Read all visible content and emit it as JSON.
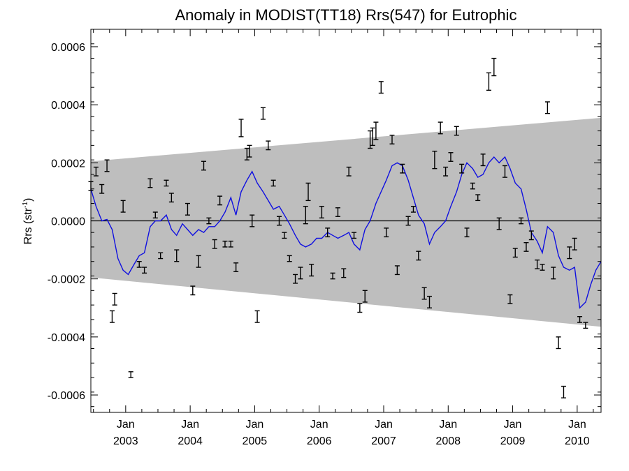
{
  "chart_data": {
    "type": "line",
    "title": "Anomaly in MODIST(TT18) Rrs(547) for Eutrophic",
    "ylabel": "Rrs (str",
    "ylabel_sup": "-1",
    "ylabel_close": ")",
    "xlim": [
      2002.46,
      2010.37
    ],
    "ylim": [
      -0.00066,
      0.00066
    ],
    "y_ticks": [
      -0.0006,
      -0.0004,
      -0.0002,
      0.0,
      0.0002,
      0.0004,
      0.0006
    ],
    "y_tick_labels": [
      "-0.0006",
      "-0.0004",
      "-0.0002",
      "0.0000",
      "0.0002",
      "0.0004",
      "0.0006"
    ],
    "x_ticks": [
      {
        "x": 2003.0,
        "month": "Jan",
        "year": "2003"
      },
      {
        "x": 2004.0,
        "month": "Jan",
        "year": "2004"
      },
      {
        "x": 2005.0,
        "month": "Jan",
        "year": "2005"
      },
      {
        "x": 2006.0,
        "month": "Jan",
        "year": "2006"
      },
      {
        "x": 2007.0,
        "month": "Jan",
        "year": "2007"
      },
      {
        "x": 2008.0,
        "month": "Jan",
        "year": "2008"
      },
      {
        "x": 2009.0,
        "month": "Jan",
        "year": "2009"
      },
      {
        "x": 2010.0,
        "month": "Jan",
        "year": "2010"
      }
    ],
    "grid": false,
    "zero_line": 0.0,
    "band": {
      "x": [
        2002.46,
        2010.37
      ],
      "upper": [
        0.000205,
        0.000355
      ],
      "lower": [
        -0.000195,
        -0.000365
      ],
      "color": "#bebebe"
    },
    "series": [
      {
        "style": "line",
        "color": "#1010e0",
        "points": [
          [
            2002.46,
            0.00011
          ],
          [
            2002.54,
            5e-05
          ],
          [
            2002.63,
            0.0
          ],
          [
            2002.71,
            5e-06
          ],
          [
            2002.79,
            -3e-05
          ],
          [
            2002.88,
            -0.00013
          ],
          [
            2002.96,
            -0.00017
          ],
          [
            2003.04,
            -0.000185
          ],
          [
            2003.13,
            -0.00015
          ],
          [
            2003.21,
            -0.00012
          ],
          [
            2003.29,
            -0.00011
          ],
          [
            2003.38,
            -2e-05
          ],
          [
            2003.46,
            0.0
          ],
          [
            2003.54,
            0.0
          ],
          [
            2003.63,
            2e-05
          ],
          [
            2003.71,
            -3e-05
          ],
          [
            2003.79,
            -5e-05
          ],
          [
            2003.88,
            -1e-05
          ],
          [
            2003.96,
            -3e-05
          ],
          [
            2004.04,
            -5e-05
          ],
          [
            2004.13,
            -3e-05
          ],
          [
            2004.21,
            -4e-05
          ],
          [
            2004.29,
            -2e-05
          ],
          [
            2004.38,
            -2e-05
          ],
          [
            2004.46,
            0.0
          ],
          [
            2004.54,
            3e-05
          ],
          [
            2004.63,
            8e-05
          ],
          [
            2004.71,
            2e-05
          ],
          [
            2004.79,
            0.0001
          ],
          [
            2004.88,
            0.00014
          ],
          [
            2004.96,
            0.00017
          ],
          [
            2005.04,
            0.00013
          ],
          [
            2005.13,
            0.0001
          ],
          [
            2005.21,
            7e-05
          ],
          [
            2005.29,
            4e-05
          ],
          [
            2005.38,
            5e-05
          ],
          [
            2005.46,
            2e-05
          ],
          [
            2005.54,
            -1e-05
          ],
          [
            2005.63,
            -5e-05
          ],
          [
            2005.71,
            -8e-05
          ],
          [
            2005.79,
            -9e-05
          ],
          [
            2005.88,
            -8e-05
          ],
          [
            2005.96,
            -6e-05
          ],
          [
            2006.04,
            -6e-05
          ],
          [
            2006.13,
            -4e-05
          ],
          [
            2006.21,
            -5e-05
          ],
          [
            2006.29,
            -6e-05
          ],
          [
            2006.38,
            -5e-05
          ],
          [
            2006.46,
            -4e-05
          ],
          [
            2006.54,
            -8e-05
          ],
          [
            2006.63,
            -0.0001
          ],
          [
            2006.71,
            -3e-05
          ],
          [
            2006.79,
            0.0
          ],
          [
            2006.88,
            6e-05
          ],
          [
            2006.96,
            0.0001
          ],
          [
            2007.04,
            0.00014
          ],
          [
            2007.13,
            0.00019
          ],
          [
            2007.21,
            0.0002
          ],
          [
            2007.29,
            0.00019
          ],
          [
            2007.38,
            0.00014
          ],
          [
            2007.46,
            8e-05
          ],
          [
            2007.54,
            2e-05
          ],
          [
            2007.63,
            -1e-05
          ],
          [
            2007.71,
            -8e-05
          ],
          [
            2007.79,
            -4e-05
          ],
          [
            2007.88,
            -2e-05
          ],
          [
            2007.96,
            0.0
          ],
          [
            2008.04,
            5e-05
          ],
          [
            2008.13,
            0.0001
          ],
          [
            2008.21,
            0.00016
          ],
          [
            2008.29,
            0.0002
          ],
          [
            2008.38,
            0.00018
          ],
          [
            2008.46,
            0.00015
          ],
          [
            2008.54,
            0.00016
          ],
          [
            2008.63,
            0.0002
          ],
          [
            2008.71,
            0.00022
          ],
          [
            2008.79,
            0.0002
          ],
          [
            2008.88,
            0.00022
          ],
          [
            2008.96,
            0.00018
          ],
          [
            2009.04,
            0.00013
          ],
          [
            2009.13,
            0.00011
          ],
          [
            2009.21,
            4e-05
          ],
          [
            2009.29,
            -4e-05
          ],
          [
            2009.38,
            -7e-05
          ],
          [
            2009.46,
            -0.00011
          ],
          [
            2009.54,
            -2e-05
          ],
          [
            2009.63,
            -4e-05
          ],
          [
            2009.71,
            -0.00012
          ],
          [
            2009.79,
            -0.00016
          ],
          [
            2009.88,
            -0.00017
          ],
          [
            2009.96,
            -0.00016
          ],
          [
            2010.04,
            -0.0003
          ],
          [
            2010.13,
            -0.00028
          ],
          [
            2010.21,
            -0.00022
          ],
          [
            2010.29,
            -0.00017
          ],
          [
            2010.37,
            -0.00014
          ]
        ]
      },
      {
        "style": "errorbar",
        "color": "#000000",
        "points": [
          [
            2002.46,
            0.00012,
            1.5e-05
          ],
          [
            2002.54,
            0.00017,
            1.5e-05
          ],
          [
            2002.63,
            0.00011,
            1.5e-05
          ],
          [
            2002.71,
            0.00019,
            2e-05
          ],
          [
            2002.79,
            -0.00033,
            2e-05
          ],
          [
            2002.83,
            -0.00027,
            2e-05
          ],
          [
            2002.96,
            5e-05,
            2e-05
          ],
          [
            2003.08,
            -0.00053,
            1e-05
          ],
          [
            2003.21,
            -0.00015,
            1e-05
          ],
          [
            2003.29,
            -0.00017,
            1e-05
          ],
          [
            2003.38,
            0.00013,
            1.5e-05
          ],
          [
            2003.46,
            2e-05,
            1e-05
          ],
          [
            2003.54,
            -0.00012,
            1e-05
          ],
          [
            2003.63,
            0.00013,
            1e-05
          ],
          [
            2003.71,
            8e-05,
            1.5e-05
          ],
          [
            2003.79,
            -0.00012,
            2e-05
          ],
          [
            2003.96,
            4e-05,
            2e-05
          ],
          [
            2004.04,
            -0.00024,
            1.5e-05
          ],
          [
            2004.13,
            -0.00014,
            2e-05
          ],
          [
            2004.21,
            0.00019,
            1.5e-05
          ],
          [
            2004.29,
            0.0,
            1e-05
          ],
          [
            2004.38,
            -8e-05,
            1.5e-05
          ],
          [
            2004.46,
            7e-05,
            1.5e-05
          ],
          [
            2004.54,
            -8e-05,
            1e-05
          ],
          [
            2004.63,
            -8e-05,
            1e-05
          ],
          [
            2004.71,
            -0.00016,
            1.5e-05
          ],
          [
            2004.79,
            0.00032,
            3e-05
          ],
          [
            2004.88,
            0.00023,
            2e-05
          ],
          [
            2004.92,
            0.00024,
            2e-05
          ],
          [
            2004.96,
            0.0,
            2e-05
          ],
          [
            2005.04,
            -0.00033,
            2e-05
          ],
          [
            2005.13,
            0.00037,
            2e-05
          ],
          [
            2005.21,
            0.00026,
            1.5e-05
          ],
          [
            2005.29,
            0.00013,
            1e-05
          ],
          [
            2005.38,
            0.0,
            1.5e-05
          ],
          [
            2005.46,
            -5e-05,
            1e-05
          ],
          [
            2005.54,
            -0.00013,
            1e-05
          ],
          [
            2005.63,
            -0.0002,
            1.5e-05
          ],
          [
            2005.71,
            -0.00018,
            2e-05
          ],
          [
            2005.79,
            2e-05,
            3e-05
          ],
          [
            2005.83,
            0.0001,
            3e-05
          ],
          [
            2005.88,
            -0.00017,
            2e-05
          ],
          [
            2006.04,
            3e-05,
            2e-05
          ],
          [
            2006.13,
            -4e-05,
            1.5e-05
          ],
          [
            2006.21,
            -0.00019,
            1e-05
          ],
          [
            2006.29,
            3e-05,
            1.5e-05
          ],
          [
            2006.38,
            -0.00018,
            1.5e-05
          ],
          [
            2006.46,
            0.00017,
            1.5e-05
          ],
          [
            2006.54,
            -5e-05,
            1e-05
          ],
          [
            2006.63,
            -0.0003,
            1.5e-05
          ],
          [
            2006.71,
            -0.00026,
            2e-05
          ],
          [
            2006.79,
            0.00028,
            3e-05
          ],
          [
            2006.83,
            0.00029,
            3e-05
          ],
          [
            2006.88,
            0.00031,
            3e-05
          ],
          [
            2006.96,
            0.00046,
            2e-05
          ],
          [
            2007.04,
            -4e-05,
            1.5e-05
          ],
          [
            2007.13,
            0.00028,
            1.5e-05
          ],
          [
            2007.21,
            -0.00017,
            1.5e-05
          ],
          [
            2007.29,
            0.00018,
            1.5e-05
          ],
          [
            2007.38,
            0.0,
            1.5e-05
          ],
          [
            2007.46,
            4e-05,
            1e-05
          ],
          [
            2007.54,
            -0.00012,
            1.5e-05
          ],
          [
            2007.63,
            -0.00025,
            2e-05
          ],
          [
            2007.71,
            -0.00028,
            2e-05
          ],
          [
            2007.79,
            0.00021,
            3e-05
          ],
          [
            2007.88,
            0.00032,
            2e-05
          ],
          [
            2007.96,
            0.00017,
            1.5e-05
          ],
          [
            2008.04,
            0.00022,
            1.5e-05
          ],
          [
            2008.13,
            0.00031,
            1.5e-05
          ],
          [
            2008.21,
            0.00018,
            1.5e-05
          ],
          [
            2008.29,
            -4e-05,
            1.5e-05
          ],
          [
            2008.38,
            0.00012,
            1e-05
          ],
          [
            2008.46,
            8e-05,
            1e-05
          ],
          [
            2008.54,
            0.00021,
            2e-05
          ],
          [
            2008.63,
            0.00048,
            3e-05
          ],
          [
            2008.71,
            0.00053,
            3e-05
          ],
          [
            2008.79,
            -1e-05,
            2e-05
          ],
          [
            2008.88,
            0.00017,
            2e-05
          ],
          [
            2008.96,
            -0.00027,
            1.5e-05
          ],
          [
            2009.04,
            -0.00011,
            1.5e-05
          ],
          [
            2009.13,
            0.0,
            1e-05
          ],
          [
            2009.21,
            -9e-05,
            1.5e-05
          ],
          [
            2009.29,
            -5e-05,
            1.5e-05
          ],
          [
            2009.38,
            -0.00015,
            1.5e-05
          ],
          [
            2009.46,
            -0.00016,
            1e-05
          ],
          [
            2009.54,
            0.00039,
            2e-05
          ],
          [
            2009.63,
            -0.00018,
            2e-05
          ],
          [
            2009.71,
            -0.00042,
            2e-05
          ],
          [
            2009.79,
            -0.00059,
            2e-05
          ],
          [
            2009.88,
            -0.00011,
            2e-05
          ],
          [
            2009.96,
            -8e-05,
            2e-05
          ],
          [
            2010.04,
            -0.00034,
            1e-05
          ],
          [
            2010.13,
            -0.00036,
            1e-05
          ]
        ]
      }
    ]
  }
}
